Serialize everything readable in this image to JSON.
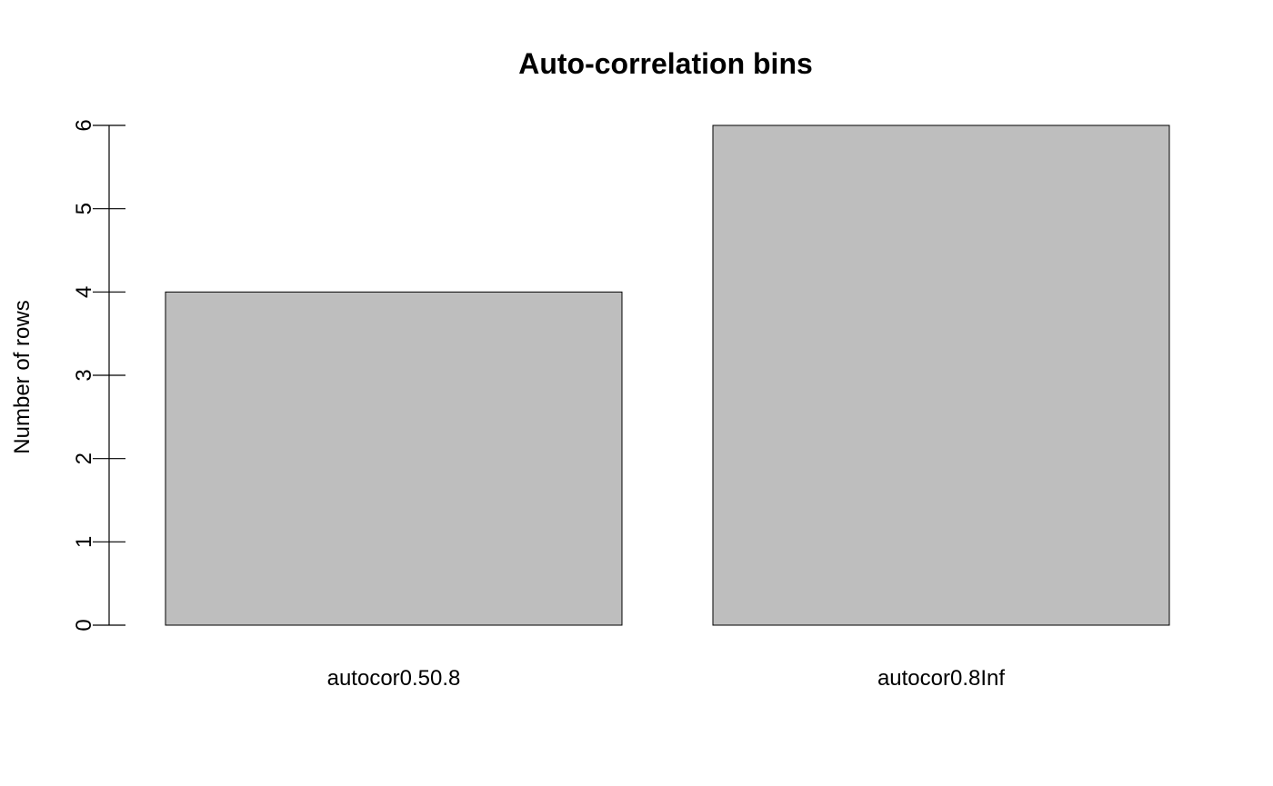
{
  "chart_data": {
    "type": "bar",
    "title": "Auto-correlation bins",
    "xlabel": "",
    "ylabel": "Number of rows",
    "categories": [
      "autocor0.50.8",
      "autocor0.8Inf"
    ],
    "values": [
      4,
      6
    ],
    "ylim": [
      0,
      6
    ],
    "yticks": [
      0,
      1,
      2,
      3,
      4,
      5,
      6
    ],
    "grid": false,
    "bar_color": "#bebebe",
    "edge_color": "#000000"
  }
}
